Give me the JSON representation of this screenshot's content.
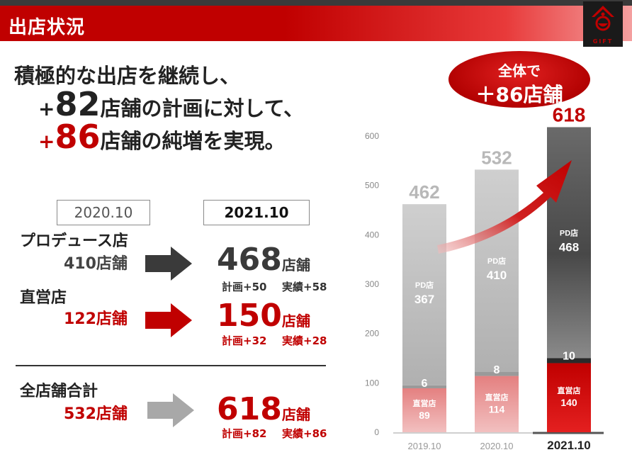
{
  "header": {
    "title": "出店状況",
    "logo_text": "GIFT"
  },
  "headline": {
    "line1": "積極的な出店を継続し、",
    "line2_plus": "+",
    "line2_num": "82",
    "line2_rest": "店舗の計画に対して、",
    "line3_plus": "+",
    "line3_num": "86",
    "line3_rest": "店舗の純増を実現。"
  },
  "comparison": {
    "date_prev": "2020.10",
    "date_curr": "2021.10",
    "rows": [
      {
        "category": "プロデュース店",
        "prev": "410店舗",
        "curr_num": "468",
        "curr_unit": "店舗",
        "plan": "計画+50",
        "actual": "実績+58"
      },
      {
        "category": "直営店",
        "prev": "122店舗",
        "curr_num": "150",
        "curr_unit": "店舗",
        "plan": "計画+32",
        "actual": "実績+28"
      },
      {
        "category": "全店舗合計",
        "prev": "532店舗",
        "curr_num": "618",
        "curr_unit": "店舗",
        "plan": "計画+82",
        "actual": "実績+86"
      }
    ]
  },
  "callout": {
    "line1": "全体で",
    "line2": "＋86店舗"
  },
  "chart_data": {
    "type": "bar",
    "stacked": true,
    "categories": [
      "2019.10",
      "2020.10",
      "2021.10"
    ],
    "series": [
      {
        "name": "直営店",
        "values": [
          89,
          114,
          140
        ]
      },
      {
        "values": [
          6,
          8,
          10
        ]
      },
      {
        "name": "PD店",
        "values": [
          367,
          410,
          468
        ]
      }
    ],
    "totals": [
      462,
      532,
      618
    ],
    "ylim": [
      0,
      600
    ],
    "yticks": [
      0,
      100,
      200,
      300,
      400,
      500,
      600
    ],
    "colors": {
      "direct_light": "#e07a7a",
      "direct_dark": "#c80000",
      "pd_light": "#bdbdbd",
      "pd_dark": "#555555",
      "total_highlight": "#c00000"
    }
  }
}
